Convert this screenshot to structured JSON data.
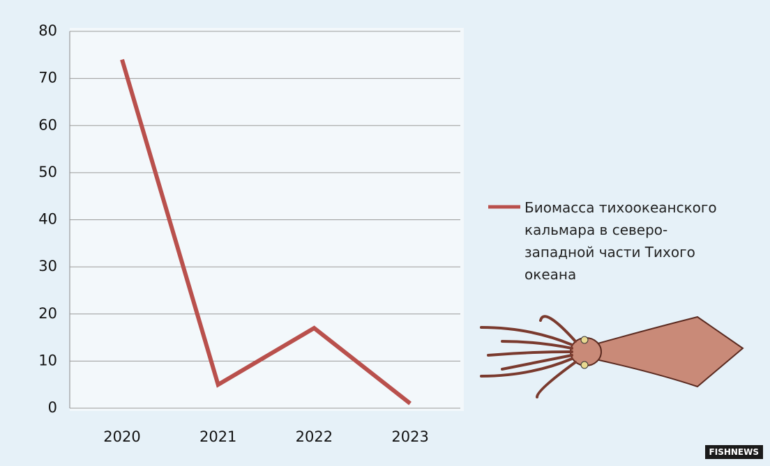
{
  "chart_data": {
    "type": "line",
    "categories": [
      "2020",
      "2021",
      "2022",
      "2023"
    ],
    "series": [
      {
        "name": "Биомасса тихоокеанского кальмара в северо-западной части Тихого океана",
        "color": "#b9504c",
        "values": [
          74,
          5,
          17,
          1
        ]
      }
    ],
    "ylim": [
      0,
      80
    ],
    "yticks": [
      0,
      10,
      20,
      30,
      40,
      50,
      60,
      70,
      80
    ],
    "grid": true,
    "legend": "right"
  },
  "logo": "FISHNEWS"
}
